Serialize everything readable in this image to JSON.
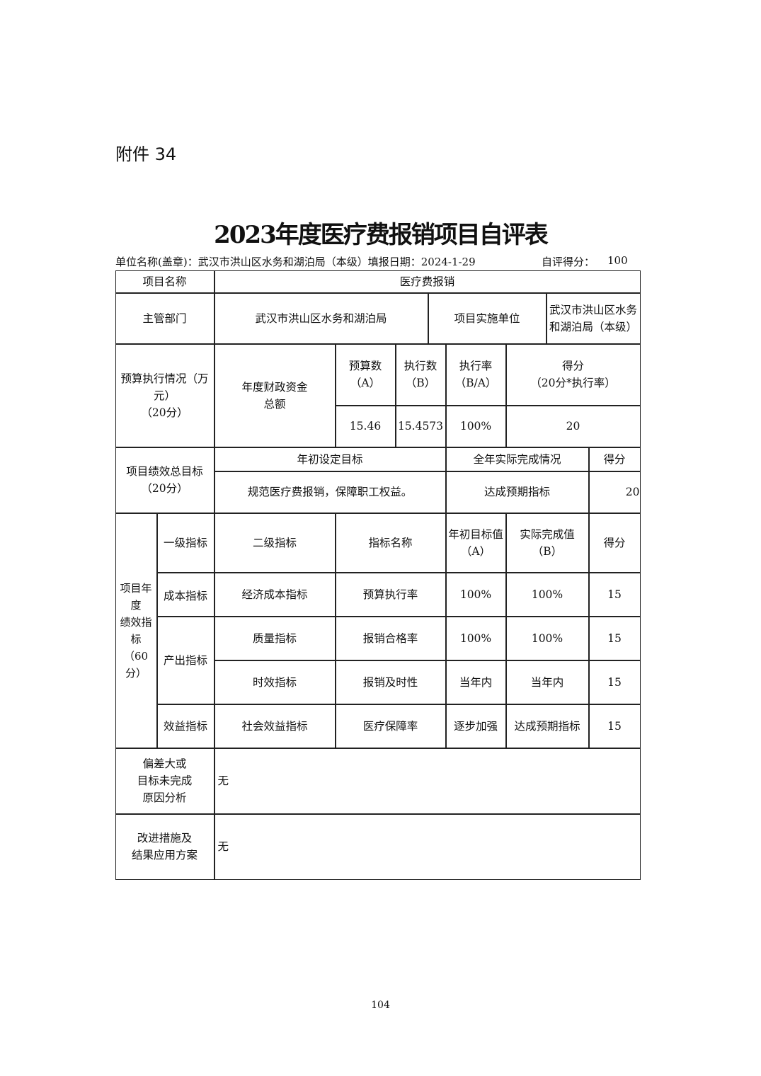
{
  "attachment_label": "附件 34",
  "title": "2023年度医疗费报销项目自评表",
  "info": {
    "unit_line": "单位名称(盖章)：武汉市洪山区水务和湖泊局（本级）填报日期：2024-1-29",
    "self_score_label": "自评得分：",
    "self_score": "100"
  },
  "table": {
    "project_name_label": "项目名称",
    "project_name": "医疗费报销",
    "dept_label": "主管部门",
    "dept": "武汉市洪山区水务和湖泊局",
    "impl_label": "项目实施单位",
    "impl": "武汉市洪山区水务和湖泊局（本级）",
    "budget": {
      "label": "预算执行情况（万元）\n（20分）",
      "fund_label": "年度财政资金\n总额",
      "col_a": "预算数（A）",
      "col_b": "执行数\n（B）",
      "col_rate": "执行率\n（B/A）",
      "col_score": "得分\n（20分*执行率）",
      "a": "15.46",
      "b": "15.4573",
      "rate": "100%",
      "score": "20"
    },
    "goal": {
      "label": "项目绩效总目标\n（20分）",
      "set_label": "年初设定目标",
      "actual_label": "全年实际完成情况",
      "score_label": "得分",
      "set": "规范医疗费报销，保障职工权益。",
      "actual": "达成预期指标",
      "score": "20"
    },
    "indicators": {
      "label": "项目年度\n绩效指标\n（60分）",
      "headers": [
        "一级指标",
        "二级指标",
        "指标名称",
        "年初目标值\n（A）",
        "实际完成值（B）",
        "得分"
      ],
      "level1": [
        "成本指标",
        "产出指标",
        "效益指标"
      ],
      "rows": [
        {
          "level2": "经济成本指标",
          "name": "预算执行率",
          "target": "100%",
          "actual": "100%",
          "score": "15"
        },
        {
          "level2": "质量指标",
          "name": "报销合格率",
          "target": "100%",
          "actual": "100%",
          "score": "15"
        },
        {
          "level2": "时效指标",
          "name": "报销及时性",
          "target": "当年内",
          "actual": "当年内",
          "score": "15"
        },
        {
          "level2": "社会效益指标",
          "name": "医疗保障率",
          "target": "逐步加强",
          "actual": "达成预期指标",
          "score": "15"
        }
      ]
    },
    "deviation_label": "偏差大或\n目标未完成\n原因分析",
    "deviation": "无",
    "improve_label": "改进措施及\n结果应用方案",
    "improve": "无"
  },
  "page_number": "104"
}
